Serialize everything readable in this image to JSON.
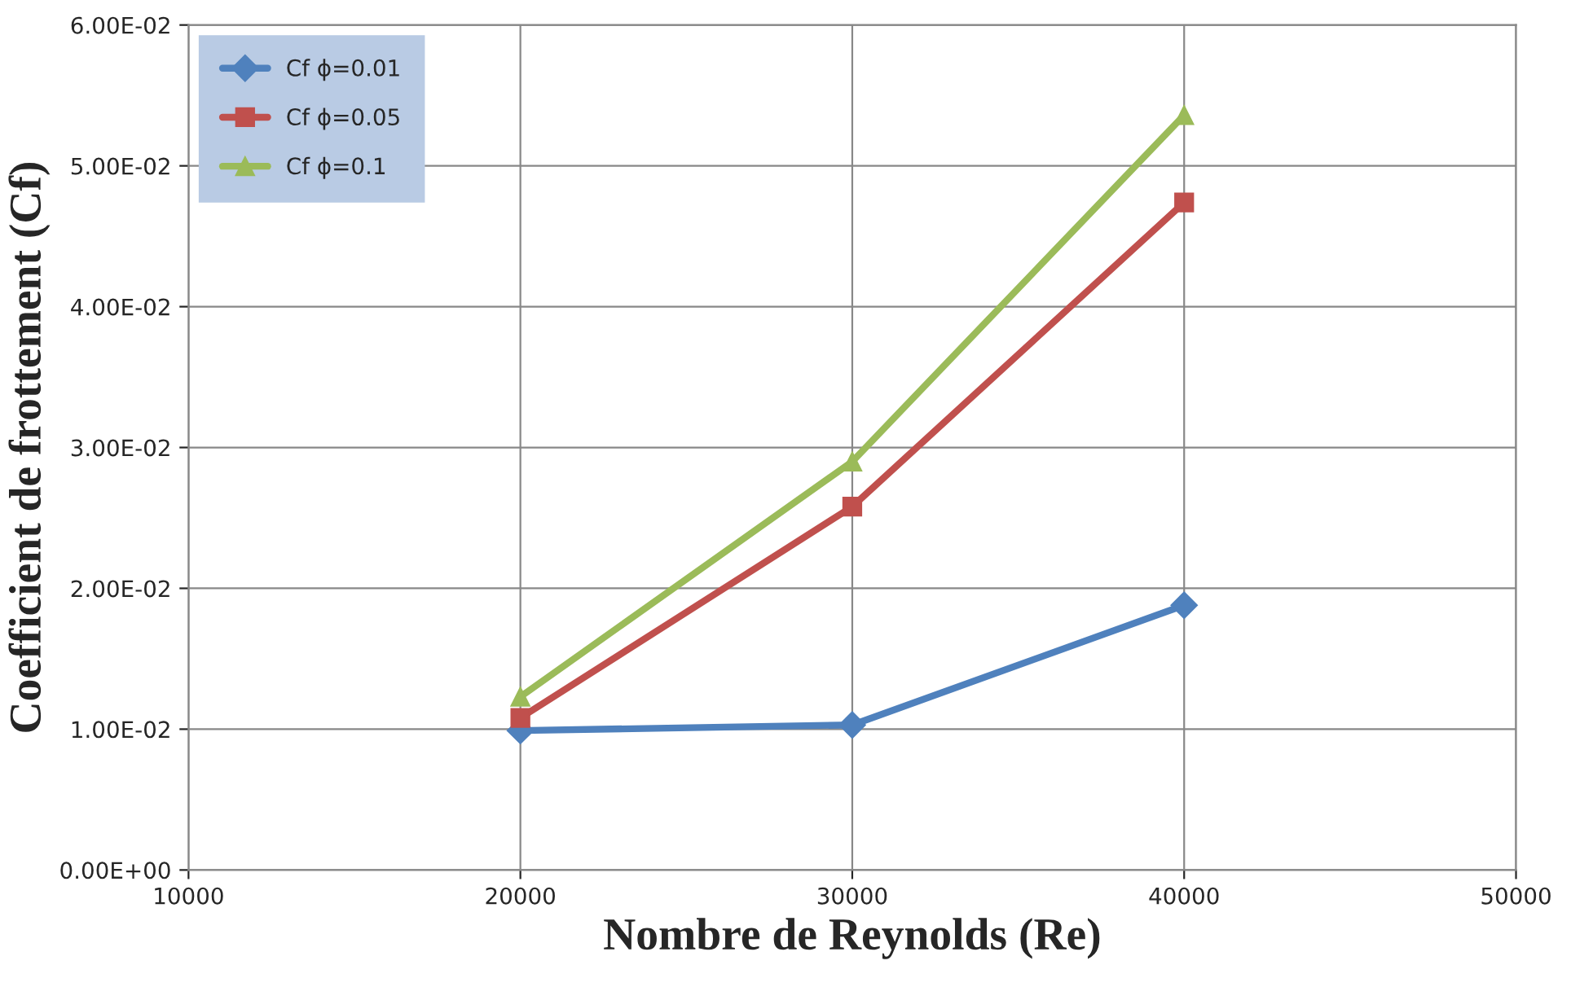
{
  "chart_data": {
    "type": "line",
    "xlabel": "Nombre de Reynolds (Re)",
    "ylabel": "Coefficient de frottement (Cf)",
    "x": [
      20000,
      30000,
      40000
    ],
    "series": [
      {
        "name": "Cf ϕ=0.01",
        "color": "#4f81bd",
        "marker": "diamond",
        "values": [
          0.0099,
          0.0103,
          0.0188
        ]
      },
      {
        "name": "Cf ϕ=0.05",
        "color": "#c0504d",
        "marker": "square",
        "values": [
          0.0108,
          0.0258,
          0.0474
        ]
      },
      {
        "name": "Cf ϕ=0.1",
        "color": "#9bbb59",
        "marker": "triangle",
        "values": [
          0.0123,
          0.029,
          0.0536
        ]
      }
    ],
    "xlim": [
      10000,
      50000
    ],
    "xticks": [
      10000,
      20000,
      30000,
      40000,
      50000
    ],
    "ylim": [
      0,
      0.06
    ],
    "yticks": [
      {
        "value": 0,
        "label": "0.00E+00"
      },
      {
        "value": 0.01,
        "label": "1.00E-02"
      },
      {
        "value": 0.02,
        "label": "2.00E-02"
      },
      {
        "value": 0.03,
        "label": "3.00E-02"
      },
      {
        "value": 0.04,
        "label": "4.00E-02"
      },
      {
        "value": 0.05,
        "label": "5.00E-02"
      },
      {
        "value": 0.06,
        "label": "6.00E-02"
      }
    ],
    "grid": true,
    "legend": "top left",
    "line_style": "solid"
  }
}
